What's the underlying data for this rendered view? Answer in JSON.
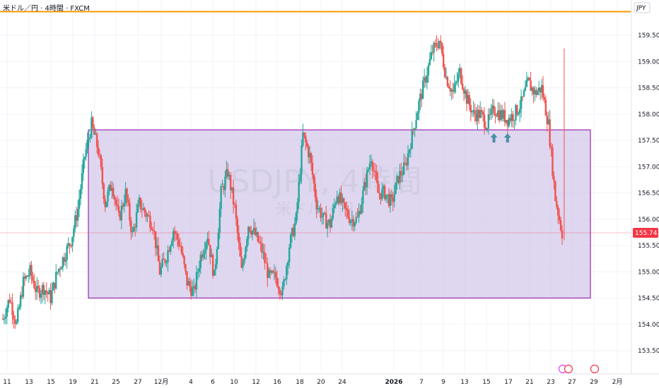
{
  "header": {
    "title": "米ドル／円 · 4時間 · FXCM"
  },
  "currency_label": "JPY",
  "watermark": {
    "symbol": "USDJPY, 4時間",
    "name": "米ドル／円"
  },
  "current_price_label": "155.741",
  "colors": {
    "up": "#26a69a",
    "down": "#ef5350",
    "zone_fill": "#d1c4e9",
    "zone_stroke": "#9c27b0",
    "top_line": "#ff9800",
    "arrow": "#4a90a4",
    "price_line": "#f23645"
  },
  "chart_data": {
    "type": "candlestick",
    "title": "米ドル／円 · 4時間 · FXCM",
    "ylim": [
      153.2,
      160.0
    ],
    "y_ticks": [
      "159.500",
      "159.000",
      "158.500",
      "158.000",
      "157.500",
      "157.000",
      "156.500",
      "156.000",
      "155.500",
      "155.000",
      "154.500",
      "154.000",
      "153.500"
    ],
    "x_ticks": [
      "11",
      "13",
      "15",
      "19",
      "21",
      "25",
      "27",
      "12月",
      "4",
      "6",
      "10",
      "12",
      "16",
      "18",
      "20",
      "24",
      "2026",
      "7",
      "9",
      "13",
      "15",
      "17",
      "21",
      "23",
      "27",
      "29",
      "2月"
    ],
    "last_price": 155.741,
    "zone": {
      "top": 157.7,
      "bottom": 154.5
    },
    "key_level": 159.95,
    "markers": [
      {
        "x": 72.0,
        "type": "arrow-up"
      },
      {
        "x": 74.0,
        "type": "arrow-up"
      }
    ],
    "series_path": [
      [
        0,
        154.1
      ],
      [
        1,
        154.5
      ],
      [
        2,
        154.0
      ],
      [
        3,
        154.8
      ],
      [
        4,
        155.0
      ],
      [
        5,
        154.6
      ],
      [
        6,
        154.7
      ],
      [
        7,
        154.5
      ],
      [
        8,
        155.0
      ],
      [
        9,
        155.3
      ],
      [
        10,
        155.6
      ],
      [
        11,
        156.2
      ],
      [
        12,
        157.2
      ],
      [
        13,
        157.8
      ],
      [
        14,
        157.3
      ],
      [
        15,
        156.3
      ],
      [
        16,
        156.7
      ],
      [
        17,
        156.0
      ],
      [
        18,
        156.5
      ],
      [
        19,
        155.7
      ],
      [
        20,
        156.3
      ],
      [
        21,
        156.1
      ],
      [
        22,
        155.9
      ],
      [
        23,
        155.0
      ],
      [
        24,
        155.3
      ],
      [
        25,
        155.8
      ],
      [
        26,
        155.5
      ],
      [
        27,
        154.8
      ],
      [
        28,
        154.6
      ],
      [
        29,
        155.3
      ],
      [
        30,
        155.7
      ],
      [
        31,
        154.9
      ],
      [
        32,
        156.5
      ],
      [
        33,
        156.9
      ],
      [
        34,
        156.2
      ],
      [
        35,
        155.0
      ],
      [
        36,
        155.9
      ],
      [
        37,
        155.7
      ],
      [
        38,
        155.4
      ],
      [
        39,
        154.9
      ],
      [
        40,
        154.9
      ],
      [
        41,
        154.6
      ],
      [
        42,
        155.5
      ],
      [
        43,
        156.0
      ],
      [
        44,
        157.6
      ],
      [
        45,
        157.2
      ],
      [
        46,
        156.3
      ],
      [
        47,
        156.0
      ],
      [
        48,
        155.9
      ],
      [
        49,
        156.5
      ],
      [
        50,
        156.2
      ],
      [
        51,
        156.0
      ],
      [
        52,
        156.0
      ],
      [
        53,
        156.6
      ],
      [
        54,
        157.2
      ],
      [
        55,
        156.5
      ],
      [
        56,
        156.5
      ],
      [
        57,
        156.3
      ],
      [
        58,
        156.8
      ],
      [
        59,
        157.0
      ],
      [
        60,
        157.6
      ],
      [
        61,
        158.2
      ],
      [
        62,
        158.7
      ],
      [
        63,
        159.2
      ],
      [
        64,
        159.4
      ],
      [
        65,
        158.7
      ],
      [
        66,
        158.4
      ],
      [
        67,
        158.8
      ],
      [
        68,
        158.3
      ],
      [
        69,
        158.0
      ],
      [
        70,
        158.0
      ],
      [
        71,
        157.8
      ],
      [
        72,
        158.1
      ],
      [
        73,
        158.0
      ],
      [
        74,
        157.9
      ],
      [
        75,
        158.0
      ],
      [
        76,
        158.2
      ],
      [
        77,
        158.6
      ],
      [
        78,
        158.4
      ],
      [
        79,
        158.5
      ],
      [
        80,
        157.8
      ],
      [
        81,
        156.4
      ],
      [
        82,
        155.741
      ]
    ],
    "x_range": [
      0,
      82
    ]
  }
}
